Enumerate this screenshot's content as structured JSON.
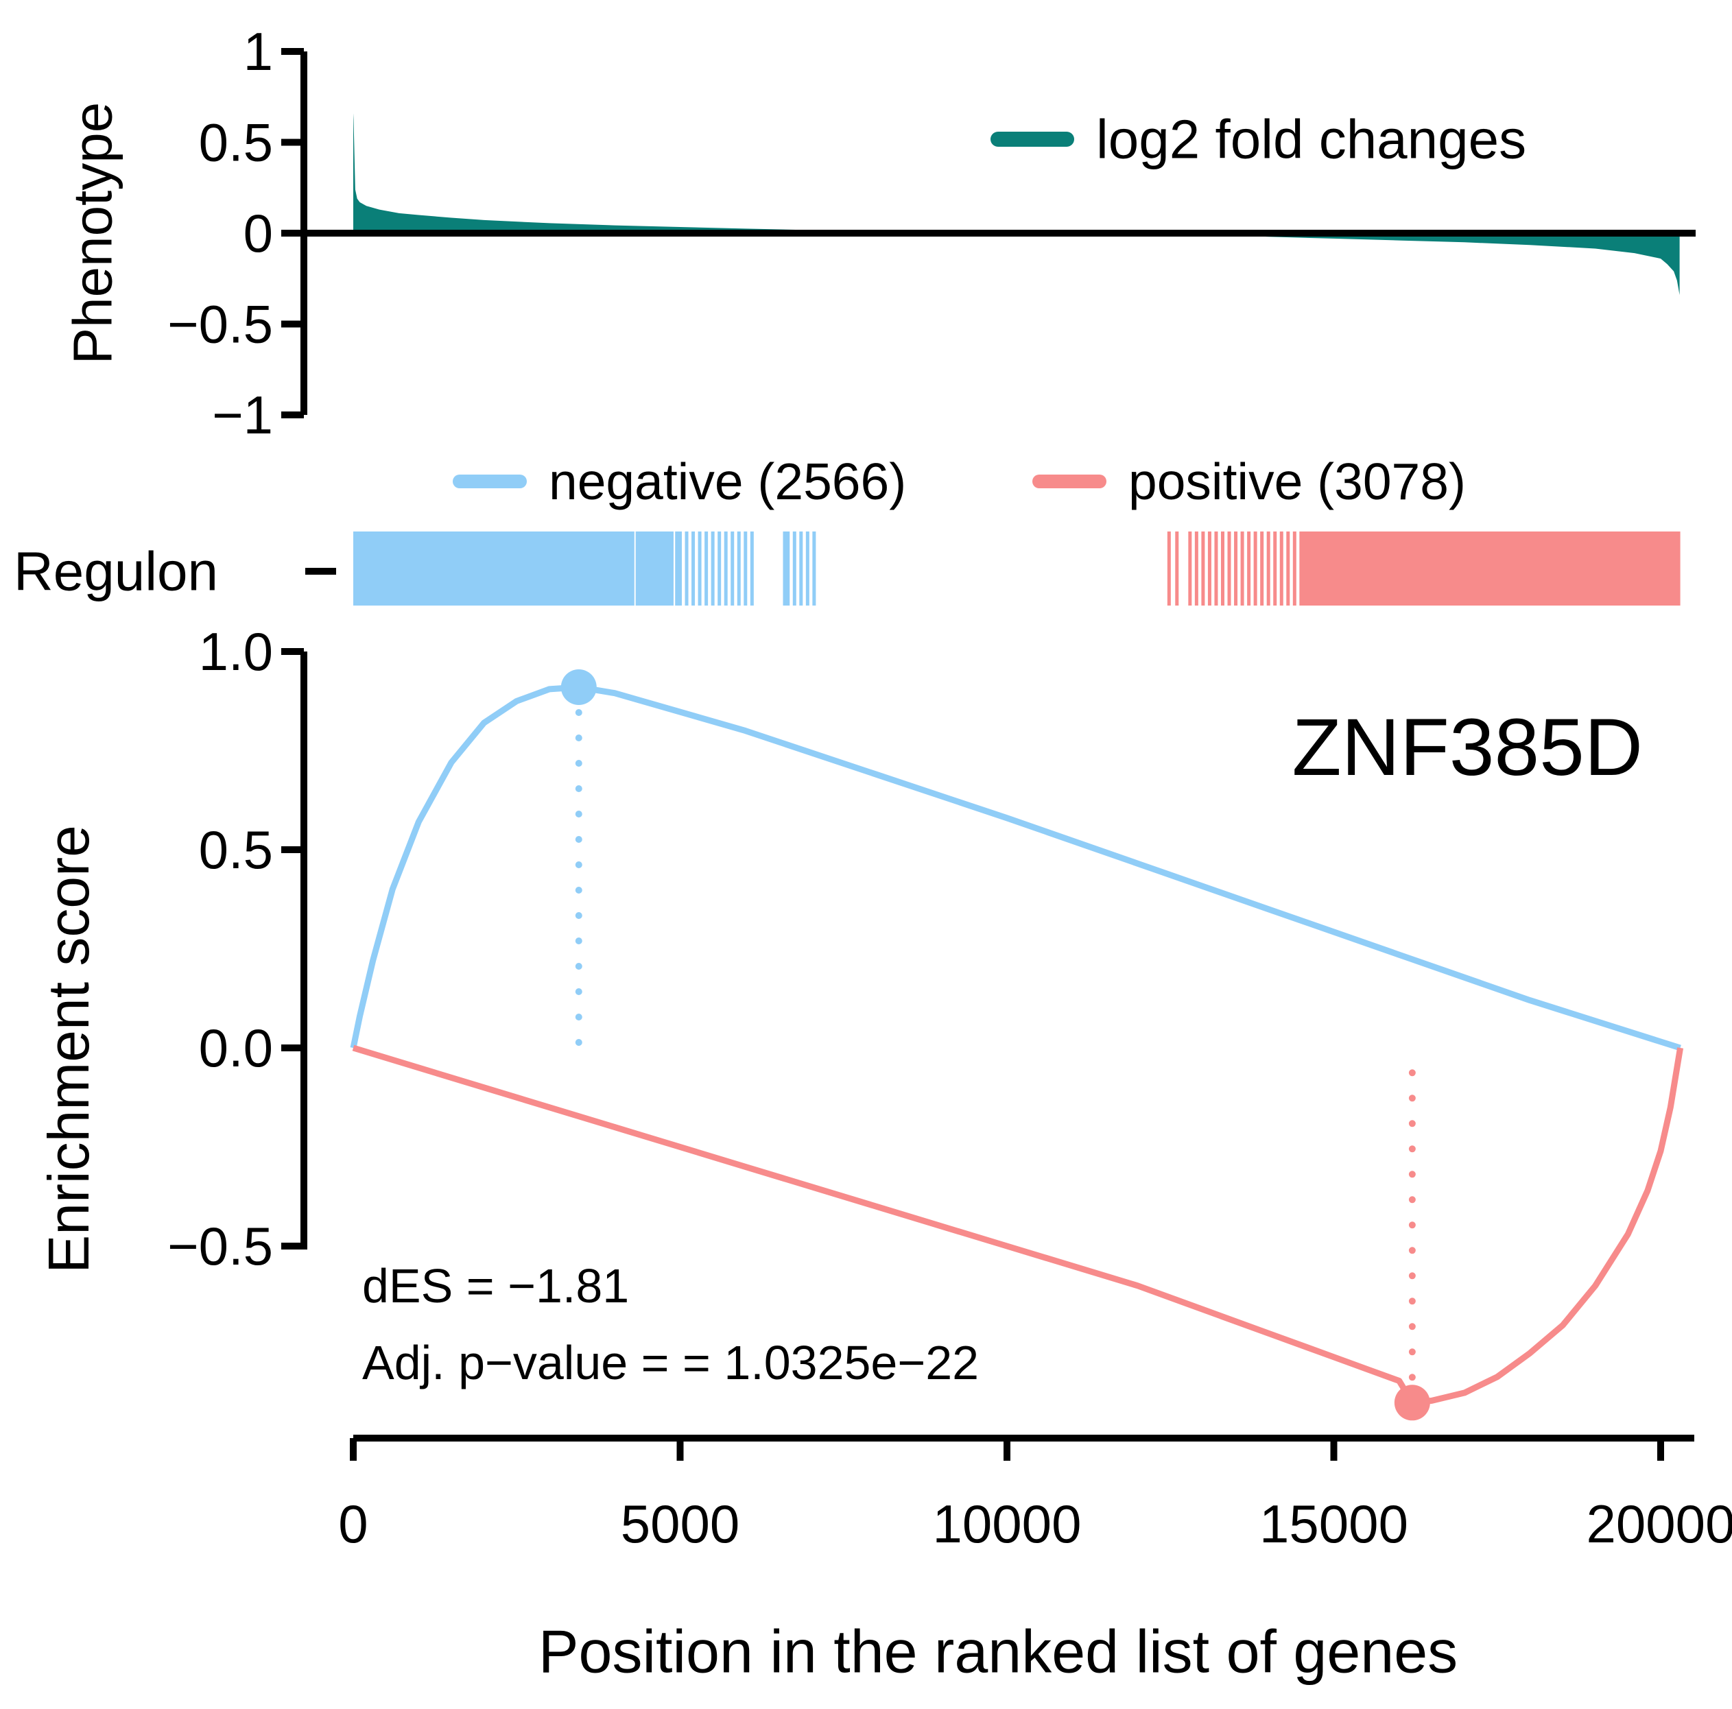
{
  "chart_data": [
    {
      "type": "area",
      "panel": "phenotype",
      "ylabel": "Phenotype",
      "ylim": [
        -1,
        1
      ],
      "y_ticks": [
        "1",
        "0.5",
        "0",
        "−0.5",
        "−1"
      ],
      "y_tick_values": [
        1,
        0.5,
        0,
        -0.5,
        -1
      ],
      "xlim": [
        0,
        20300
      ],
      "legend": {
        "label": "log2 fold changes",
        "position": "top-right"
      },
      "series": [
        {
          "name": "log2 fold changes",
          "x": [
            0,
            5,
            30,
            60,
            100,
            200,
            400,
            700,
            1000,
            1500,
            2000,
            3000,
            4000,
            5000,
            6000,
            7000,
            8000,
            8500,
            9000,
            13000,
            14000,
            15000,
            16000,
            17000,
            18000,
            19000,
            19600,
            20000,
            20100,
            20200,
            20250,
            20290
          ],
          "y": [
            0.66,
            0.62,
            0.24,
            0.19,
            0.17,
            0.15,
            0.13,
            0.11,
            0.1,
            0.085,
            0.072,
            0.055,
            0.043,
            0.034,
            0.025,
            0.017,
            0.009,
            0.005,
            0.0,
            0.0,
            -0.02,
            -0.03,
            -0.04,
            -0.05,
            -0.065,
            -0.085,
            -0.11,
            -0.14,
            -0.17,
            -0.21,
            -0.26,
            -0.34
          ]
        }
      ],
      "colors": {
        "fill": "#0a7f78",
        "axis": "#000000"
      }
    },
    {
      "type": "barcode",
      "panel": "regulon",
      "ylabel": "Regulon",
      "legend": [
        {
          "label": "negative (2566)",
          "color": "#90cdf7"
        },
        {
          "label": "positive (3078)",
          "color": "#f78b8b"
        }
      ],
      "negative": {
        "solid_ranges": [
          [
            0,
            4300
          ],
          [
            4320,
            4900
          ]
        ],
        "lines": [
          4950,
          5000,
          5100,
          5200,
          5300,
          5400,
          5500,
          5600,
          5700,
          5800,
          5900,
          6000,
          6100,
          6600,
          6650,
          6750,
          6850,
          6950,
          7050
        ]
      },
      "positive": {
        "lines": [
          12480,
          12600,
          12800,
          12900,
          13000,
          13100,
          13200,
          13300,
          13400,
          13500,
          13600,
          13700,
          13800,
          13900,
          14000,
          14100,
          14200,
          14300,
          14400,
          14500
        ],
        "solid_ranges": [
          [
            14500,
            20300
          ]
        ]
      }
    },
    {
      "type": "line",
      "panel": "enrichment",
      "ylabel": "Enrichment score",
      "xlabel": "Position in the ranked list of genes",
      "ylim": [
        -0.9,
        1.0
      ],
      "xlim": [
        0,
        21000
      ],
      "y_ticks": [
        "1.0",
        "0.5",
        "0.0",
        "−0.5"
      ],
      "y_tick_values": [
        1.0,
        0.5,
        0.0,
        -0.5
      ],
      "x_ticks": [
        "0",
        "5000",
        "10000",
        "15000",
        "20000"
      ],
      "x_tick_values": [
        0,
        5000,
        10000,
        15000,
        20000
      ],
      "annotation_title": "ZNF385D",
      "stats": [
        "dES = −1.81",
        "Adj. p−value = = 1.0325e−22"
      ],
      "series": [
        {
          "color": "#90cdf7",
          "x": [
            0,
            100,
            300,
            600,
            1000,
            1500,
            2000,
            2500,
            3000,
            3450,
            4000,
            6000,
            8000,
            10000,
            12000,
            14000,
            16000,
            18000,
            20300
          ],
          "y": [
            0.0,
            0.08,
            0.22,
            0.4,
            0.57,
            0.72,
            0.82,
            0.875,
            0.905,
            0.91,
            0.895,
            0.8,
            0.69,
            0.58,
            0.465,
            0.35,
            0.235,
            0.12,
            0.0
          ],
          "peak": {
            "x": 3450,
            "y": 0.91
          }
        },
        {
          "color": "#f78b8b",
          "x": [
            0,
            2000,
            4000,
            6000,
            8000,
            10000,
            12000,
            14000,
            15000,
            15500,
            16000,
            16200,
            16500,
            17000,
            17500,
            18000,
            18500,
            19000,
            19500,
            19800,
            20000,
            20150,
            20300
          ],
          "y": [
            0.0,
            -0.1,
            -0.2,
            -0.3,
            -0.4,
            -0.5,
            -0.6,
            -0.72,
            -0.78,
            -0.81,
            -0.84,
            -0.895,
            -0.89,
            -0.87,
            -0.83,
            -0.77,
            -0.7,
            -0.6,
            -0.47,
            -0.36,
            -0.26,
            -0.15,
            0.0
          ],
          "trough": {
            "x": 16200,
            "y": -0.895
          }
        }
      ]
    }
  ]
}
